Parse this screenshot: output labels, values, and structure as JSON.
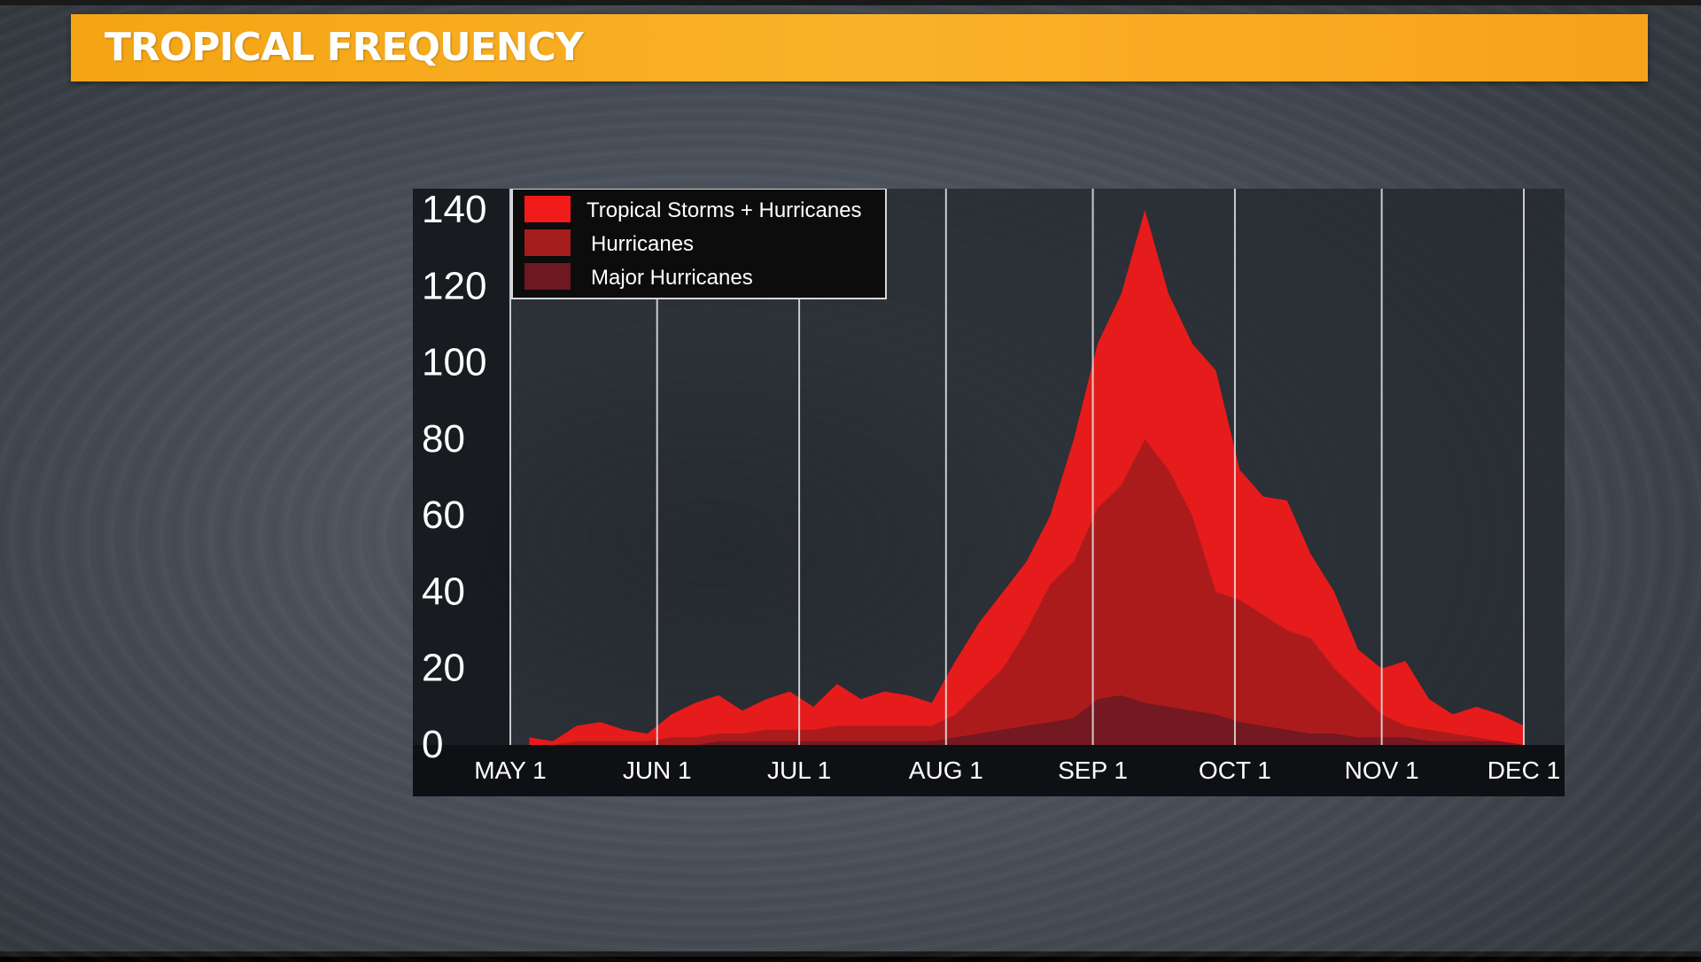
{
  "header": {
    "title": "TROPICAL FREQUENCY"
  },
  "colors": {
    "tropical_storms_hurricanes": "#f01a1a",
    "hurricanes": "#a51c1c",
    "major_hurricanes": "#6e1822",
    "title_bar": "#f8a81c",
    "gridline": "#e8e8e8",
    "chart_bg": "#1e2227"
  },
  "chart_data": {
    "type": "area",
    "title": "",
    "xlabel": "",
    "ylabel": "",
    "ylim": [
      0,
      140
    ],
    "yticks": [
      "0",
      "20",
      "40",
      "60",
      "80",
      "100",
      "120",
      "140"
    ],
    "xticks": [
      "MAY 1",
      "JUN 1",
      "JUL 1",
      "AUG 1",
      "SEP 1",
      "OCT 1",
      "NOV 1",
      "DEC 1"
    ],
    "xlim_days": [
      0,
      214
    ],
    "grid": "vertical lines at month starts",
    "legend_position": "top-left",
    "x": [
      "2000-05-05",
      "2000-05-10",
      "2000-05-15",
      "2000-05-20",
      "2000-05-25",
      "2000-05-30",
      "2000-06-04",
      "2000-06-09",
      "2000-06-14",
      "2000-06-19",
      "2000-06-24",
      "2000-06-29",
      "2000-07-04",
      "2000-07-09",
      "2000-07-14",
      "2000-07-19",
      "2000-07-24",
      "2000-07-29",
      "2000-08-03",
      "2000-08-08",
      "2000-08-13",
      "2000-08-18",
      "2000-08-23",
      "2000-08-28",
      "2000-09-02",
      "2000-09-07",
      "2000-09-12",
      "2000-09-17",
      "2000-09-22",
      "2000-09-27",
      "2000-10-02",
      "2000-10-07",
      "2000-10-12",
      "2000-10-17",
      "2000-10-22",
      "2000-10-27",
      "2000-11-01",
      "2000-11-06",
      "2000-11-11",
      "2000-11-16",
      "2000-11-21",
      "2000-11-26",
      "2000-12-01"
    ],
    "series": [
      {
        "name": "Tropical Storms + Hurricanes",
        "values": [
          2,
          1,
          5,
          6,
          4,
          3,
          8,
          11,
          13,
          9,
          12,
          14,
          10,
          16,
          12,
          14,
          13,
          11,
          22,
          32,
          40,
          48,
          60,
          80,
          105,
          118,
          140,
          118,
          105,
          98,
          72,
          65,
          64,
          50,
          40,
          25,
          20,
          22,
          12,
          8,
          10,
          8,
          5
        ]
      },
      {
        "name": "Hurricanes",
        "values": [
          0,
          0,
          1,
          1,
          1,
          1,
          2,
          2,
          3,
          3,
          4,
          4,
          4,
          5,
          5,
          5,
          5,
          5,
          8,
          14,
          20,
          30,
          42,
          48,
          62,
          68,
          80,
          72,
          60,
          40,
          38,
          34,
          30,
          28,
          20,
          14,
          8,
          5,
          4,
          3,
          2,
          1,
          0
        ]
      },
      {
        "name": "Major Hurricanes",
        "values": [
          0,
          0,
          0,
          0,
          0,
          0,
          0,
          0,
          1,
          1,
          1,
          1,
          1,
          1,
          1,
          1,
          1,
          1,
          2,
          3,
          4,
          5,
          6,
          7,
          12,
          13,
          11,
          10,
          9,
          8,
          6,
          5,
          4,
          3,
          3,
          2,
          2,
          2,
          1,
          1,
          1,
          1,
          0
        ]
      }
    ]
  }
}
